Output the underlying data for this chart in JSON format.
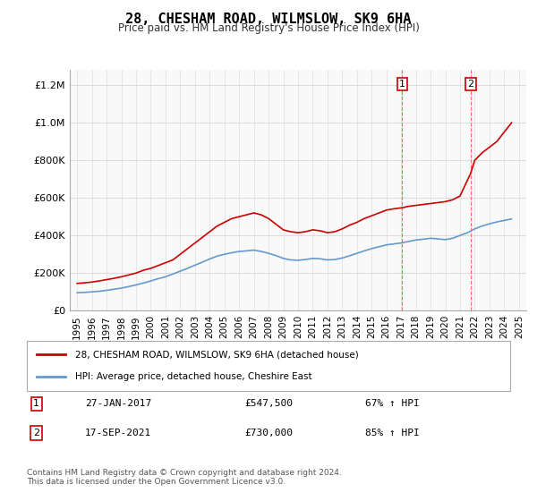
{
  "title": "28, CHESHAM ROAD, WILMSLOW, SK9 6HA",
  "subtitle": "Price paid vs. HM Land Registry's House Price Index (HPI)",
  "red_label": "28, CHESHAM ROAD, WILMSLOW, SK9 6HA (detached house)",
  "blue_label": "HPI: Average price, detached house, Cheshire East",
  "annotation1_date": "27-JAN-2017",
  "annotation1_price": "£547,500",
  "annotation1_hpi": "67% ↑ HPI",
  "annotation1_year": 2017.07,
  "annotation1_value": 547500,
  "annotation2_date": "17-SEP-2021",
  "annotation2_price": "£730,000",
  "annotation2_hpi": "85% ↑ HPI",
  "annotation2_year": 2021.72,
  "annotation2_value": 730000,
  "ylim": [
    0,
    1280000
  ],
  "xlim_start": 1994.5,
  "xlim_end": 2025.5,
  "footer": "Contains HM Land Registry data © Crown copyright and database right 2024.\nThis data is licensed under the Open Government Licence v3.0.",
  "red_color": "#cc0000",
  "blue_color": "#6699cc",
  "vline_color": "#ff6666",
  "bg_color": "#ffffff",
  "plot_bg": "#f9f9f9",
  "grid_color": "#dddddd",
  "years_red": [
    1995.0,
    1995.5,
    1996.0,
    1996.5,
    1997.0,
    1997.5,
    1998.0,
    1998.5,
    1999.0,
    1999.5,
    2000.0,
    2000.5,
    2001.0,
    2001.5,
    2002.0,
    2002.5,
    2003.0,
    2003.5,
    2004.0,
    2004.5,
    2005.0,
    2005.5,
    2006.0,
    2006.5,
    2007.0,
    2007.5,
    2008.0,
    2008.5,
    2009.0,
    2009.5,
    2010.0,
    2010.5,
    2011.0,
    2011.5,
    2012.0,
    2012.5,
    2013.0,
    2013.5,
    2014.0,
    2014.5,
    2015.0,
    2015.5,
    2016.0,
    2016.5,
    2017.07,
    2017.5,
    2018.0,
    2018.5,
    2019.0,
    2019.5,
    2020.0,
    2020.5,
    2021.0,
    2021.72,
    2022.0,
    2022.5,
    2023.0,
    2023.5,
    2024.0,
    2024.5
  ],
  "values_red": [
    145000,
    148000,
    152000,
    158000,
    165000,
    172000,
    180000,
    190000,
    200000,
    215000,
    225000,
    240000,
    255000,
    270000,
    300000,
    330000,
    360000,
    390000,
    420000,
    450000,
    470000,
    490000,
    500000,
    510000,
    520000,
    510000,
    490000,
    460000,
    430000,
    420000,
    415000,
    420000,
    430000,
    425000,
    415000,
    420000,
    435000,
    455000,
    470000,
    490000,
    505000,
    520000,
    535000,
    542000,
    547500,
    555000,
    560000,
    565000,
    570000,
    575000,
    580000,
    590000,
    610000,
    730000,
    800000,
    840000,
    870000,
    900000,
    950000,
    1000000
  ],
  "years_blue": [
    1995.0,
    1995.5,
    1996.0,
    1996.5,
    1997.0,
    1997.5,
    1998.0,
    1998.5,
    1999.0,
    1999.5,
    2000.0,
    2000.5,
    2001.0,
    2001.5,
    2002.0,
    2002.5,
    2003.0,
    2003.5,
    2004.0,
    2004.5,
    2005.0,
    2005.5,
    2006.0,
    2006.5,
    2007.0,
    2007.5,
    2008.0,
    2008.5,
    2009.0,
    2009.5,
    2010.0,
    2010.5,
    2011.0,
    2011.5,
    2012.0,
    2012.5,
    2013.0,
    2013.5,
    2014.0,
    2014.5,
    2015.0,
    2015.5,
    2016.0,
    2016.5,
    2017.0,
    2017.5,
    2018.0,
    2018.5,
    2019.0,
    2019.5,
    2020.0,
    2020.5,
    2021.0,
    2021.5,
    2022.0,
    2022.5,
    2023.0,
    2023.5,
    2024.0,
    2024.5
  ],
  "values_blue": [
    95000,
    97000,
    100000,
    103000,
    108000,
    114000,
    120000,
    128000,
    137000,
    147000,
    158000,
    170000,
    180000,
    195000,
    210000,
    225000,
    242000,
    258000,
    275000,
    290000,
    300000,
    308000,
    315000,
    318000,
    322000,
    315000,
    305000,
    293000,
    278000,
    270000,
    268000,
    272000,
    278000,
    276000,
    270000,
    272000,
    280000,
    292000,
    305000,
    318000,
    330000,
    340000,
    350000,
    355000,
    360000,
    368000,
    376000,
    380000,
    385000,
    382000,
    378000,
    385000,
    400000,
    415000,
    435000,
    450000,
    462000,
    472000,
    480000,
    488000
  ]
}
